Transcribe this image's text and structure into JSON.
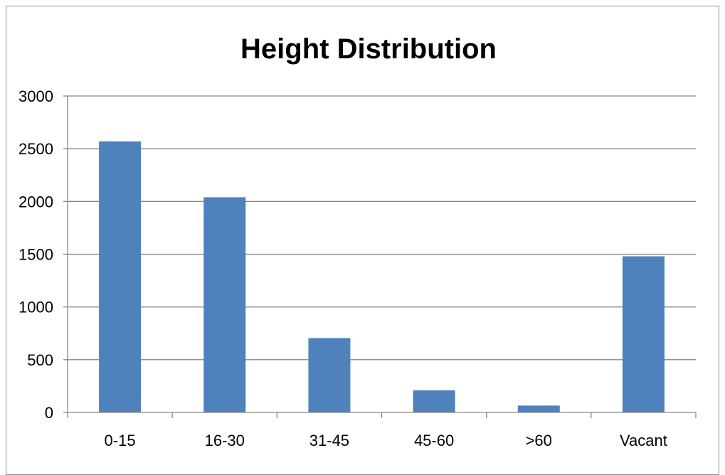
{
  "chart_data": {
    "type": "bar",
    "title": "Height Distribution",
    "xlabel": "",
    "ylabel": "",
    "categories": [
      "0-15",
      "16-30",
      "31-45",
      "45-60",
      ">60",
      "Vacant"
    ],
    "values": [
      2570,
      2040,
      705,
      210,
      65,
      1480
    ],
    "ylim": [
      0,
      3000
    ],
    "yticks": [
      0,
      500,
      1000,
      1500,
      2000,
      2500,
      3000
    ],
    "grid": true,
    "legend": "none",
    "bar_color": "#4f81bd",
    "grid_color": "#868686"
  }
}
